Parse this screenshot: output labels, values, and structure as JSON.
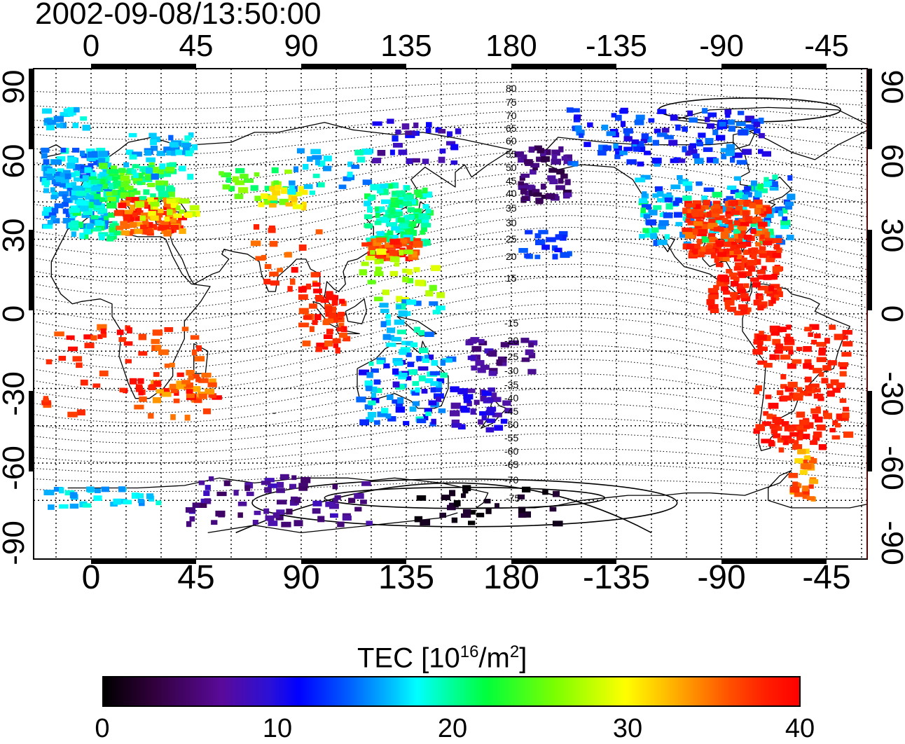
{
  "timestamp": "2002-09-08/13:50:00",
  "axes": {
    "lon_ticks_top": [
      "0",
      "45",
      "90",
      "135",
      "180",
      "-135",
      "-90",
      "-45"
    ],
    "lon_ticks_bottom": [
      "0",
      "45",
      "90",
      "135",
      "180",
      "-135",
      "-90",
      "-45"
    ],
    "lat_ticks_left": [
      "90",
      "60",
      "30",
      "0",
      "-30",
      "-60",
      "-90"
    ],
    "lat_ticks_right": [
      "90",
      "60",
      "30",
      "0",
      "-30",
      "-60",
      "-90"
    ]
  },
  "contour_labels": {
    "north": [
      "80",
      "75",
      "70",
      "65",
      "60",
      "55",
      "50",
      "45",
      "40",
      "35",
      "30",
      "25",
      "20",
      "15"
    ],
    "south": [
      "-15",
      "-20",
      "-25",
      "-30",
      "-35",
      "-40",
      "-45",
      "-50",
      "-55",
      "-60",
      "-65",
      "-70",
      "-75"
    ]
  },
  "colorbar": {
    "title_main": "TEC  [10",
    "title_exp1": "16",
    "title_mid": "/m",
    "title_exp2": "2",
    "title_end": "]",
    "tick_labels": [
      "0",
      "10",
      "20",
      "30",
      "40"
    ],
    "range": [
      0,
      40
    ],
    "colors": [
      "#000000",
      "#5a0a9a",
      "#0000ff",
      "#00ffff",
      "#00ff3c",
      "#ffff00",
      "#ff0000"
    ]
  }
}
